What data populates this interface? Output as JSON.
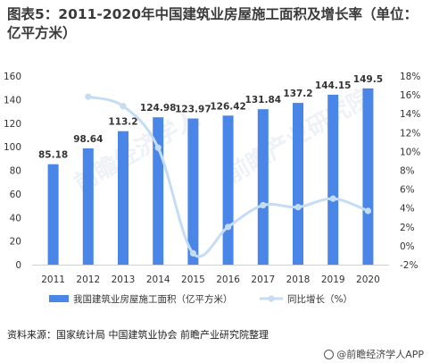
{
  "title": "图表5：2011-2020年中国建筑业房屋施工面积及增长率（单位：亿平方米）",
  "source": "资料来源：国家统计局 中国建筑业协会 前瞻产业研究院整理",
  "brand": "@前瞻经济学人APP",
  "colors": {
    "bar": "#4a86e8",
    "line": "#c5dcf5",
    "text": "#333333",
    "grid": "#e6e6e6"
  },
  "chart_data": {
    "type": "bar",
    "categories": [
      "2011",
      "2012",
      "2013",
      "2014",
      "2015",
      "2016",
      "2017",
      "2018",
      "2019",
      "2020"
    ],
    "series": [
      {
        "name": "我国建筑业房屋施工面积（亿平方米）",
        "type": "bar",
        "axis": "left",
        "values": [
          85.18,
          98.64,
          113.2,
          124.98,
          123.97,
          126.42,
          131.84,
          137.2,
          144.15,
          149.5
        ]
      },
      {
        "name": "同比增长（%）",
        "type": "line",
        "axis": "right",
        "values": [
          null,
          15.8,
          14.8,
          10.4,
          -0.8,
          2.0,
          4.3,
          4.1,
          5.0,
          3.7
        ]
      }
    ],
    "ylim_left": [
      0,
      160
    ],
    "yticks_left": [
      "0",
      "20",
      "40",
      "60",
      "80",
      "100",
      "120",
      "140",
      "160"
    ],
    "ylim_right": [
      -2,
      18
    ],
    "yticks_right": [
      "-2%",
      "0%",
      "2%",
      "4%",
      "6%",
      "8%",
      "10%",
      "12%",
      "14%",
      "16%",
      "18%"
    ],
    "data_labels": [
      "85.18",
      "98.64",
      "113.2",
      "124.98",
      "123.97",
      "126.42",
      "131.84",
      "137.2",
      "144.15",
      "149.5"
    ],
    "legend_position": "bottom",
    "grid": false
  }
}
